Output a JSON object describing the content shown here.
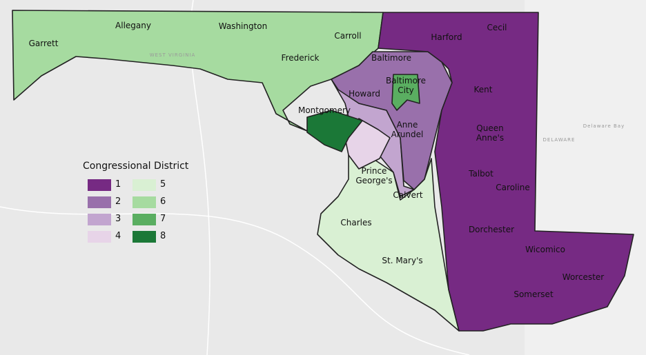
{
  "legend": {
    "title": "Congressional District",
    "items": [
      {
        "label": "1",
        "color": "#762a83"
      },
      {
        "label": "2",
        "color": "#9970ab"
      },
      {
        "label": "3",
        "color": "#c2a5cf"
      },
      {
        "label": "4",
        "color": "#e7d4e8"
      },
      {
        "label": "5",
        "color": "#d9f0d3"
      },
      {
        "label": "6",
        "color": "#a6dba0"
      },
      {
        "label": "7",
        "color": "#5aae61"
      },
      {
        "label": "8",
        "color": "#1b7837"
      }
    ]
  },
  "counties": [
    "Garrett",
    "Allegany",
    "Washington",
    "Frederick",
    "Carroll",
    "Baltimore",
    "Harford",
    "Cecil",
    "Baltimore City",
    "Howard",
    "Montgomery",
    "Anne Arundel",
    "Kent",
    "Queen Anne's",
    "Talbot",
    "Caroline",
    "Prince George's",
    "Calvert",
    "Charles",
    "St. Mary's",
    "Dorchester",
    "Wicomico",
    "Worcester",
    "Somerset"
  ],
  "background_labels": [
    "WEST VIRGINIA",
    "DELAWARE",
    "Delaware Bay"
  ]
}
